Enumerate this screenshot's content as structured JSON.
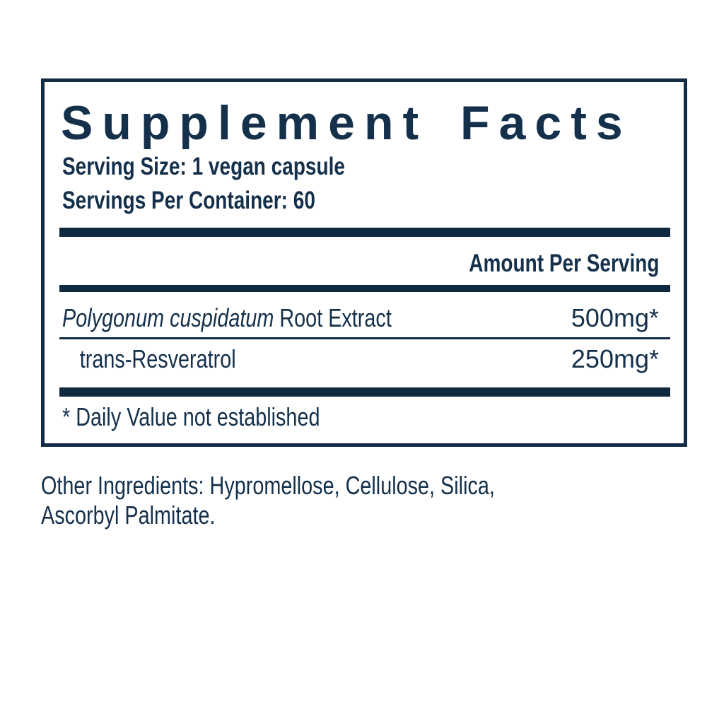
{
  "colors": {
    "navy_text": "#14304B",
    "rule_and_border": "#122C45",
    "background": "#FFFFFF"
  },
  "supplement_facts": {
    "title": "Supplement Facts",
    "serving_size": "Serving Size: 1 vegan capsule",
    "servings_per_container": "Servings Per Container: 60",
    "amount_header": "Amount Per Serving",
    "rows": [
      {
        "name_italic": "Polygonum cuspidatum",
        "name_rest": " Root Extract",
        "amount": "500mg*"
      },
      {
        "name_italic": "",
        "name_rest": "trans-Resveratrol",
        "amount": "250mg*"
      }
    ],
    "footnote": "* Daily Value not established"
  },
  "other_ingredients": "Other Ingredients: Hypromellose, Cellulose, Silica, Ascorbyl Palmitate."
}
